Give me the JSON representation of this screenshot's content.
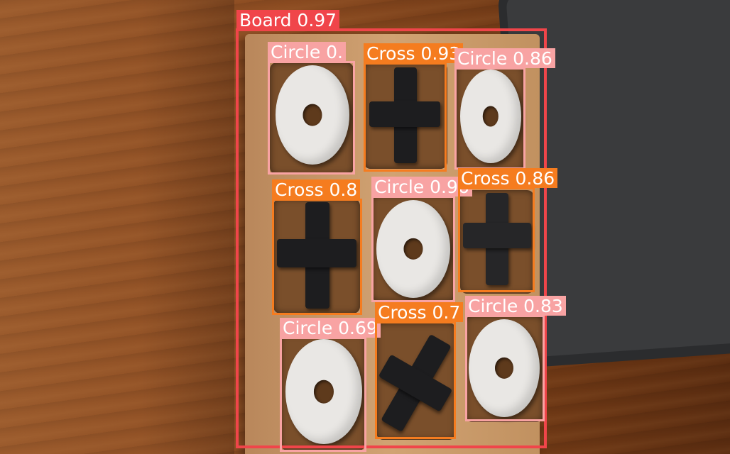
{
  "detections": {
    "board": {
      "label": "Board 0.97"
    },
    "d1": {
      "label": "Circle 0."
    },
    "d2": {
      "label": "Cross 0.93"
    },
    "d3": {
      "label": "Circle 0.86"
    },
    "d4": {
      "label": "Cross 0.8"
    },
    "d5": {
      "label": "Circle 0.96"
    },
    "d6": {
      "label": "Cross 0.86"
    },
    "d7": {
      "label": "Circle 0.69"
    },
    "d8": {
      "label": "Cross 0.7"
    },
    "d9": {
      "label": "Circle 0.83"
    }
  },
  "colors": {
    "board": "#f0454a",
    "circle": "#f8a3a3",
    "cross": "#f57c1f"
  }
}
